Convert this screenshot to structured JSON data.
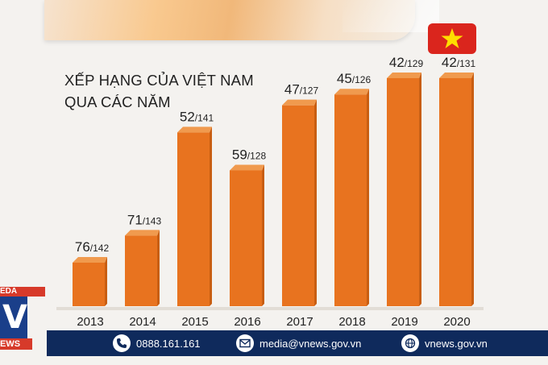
{
  "chart_data": {
    "type": "bar",
    "title_lines": [
      "XẾP HẠNG CỦA VIỆT NAM",
      "QUA CÁC NĂM"
    ],
    "categories": [
      "2013",
      "2014",
      "2015",
      "2016",
      "2017",
      "2018",
      "2019",
      "2020"
    ],
    "values": [
      76,
      71,
      52,
      59,
      47,
      45,
      42,
      42
    ],
    "totals": [
      142,
      143,
      141,
      128,
      127,
      126,
      129,
      131
    ],
    "y_inverted": true,
    "ylim": [
      80,
      40
    ],
    "bar_color": "#e8731f",
    "grid": false
  },
  "flag": {
    "color": "#da251d",
    "star_color": "#ffde00",
    "icon": "vietnam-flag-icon"
  },
  "logo": {
    "top_text": "EDA",
    "letter": "V",
    "bottom_text": "EWS"
  },
  "footer": {
    "phone": "0888.161.161",
    "email": "media@vnews.gov.vn",
    "web": "vnews.gov.vn"
  }
}
